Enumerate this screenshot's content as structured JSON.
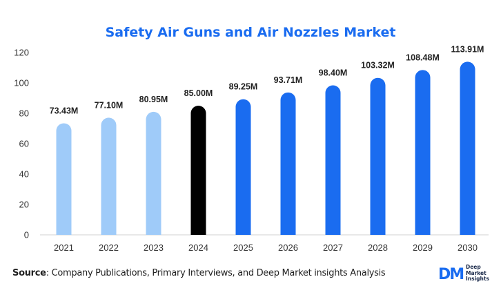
{
  "chart_data": {
    "type": "bar",
    "title": "Safety Air Guns and Air Nozzles Market",
    "categories": [
      "2021",
      "2022",
      "2023",
      "2024",
      "2025",
      "2026",
      "2027",
      "2028",
      "2029",
      "2030"
    ],
    "values": [
      73.43,
      77.1,
      80.95,
      85.0,
      89.25,
      93.71,
      98.4,
      103.32,
      108.48,
      113.91
    ],
    "data_labels": [
      "73.43M",
      "77.10M",
      "80.95M",
      "85.00M",
      "89.25M",
      "93.71M",
      "98.40M",
      "103.32M",
      "108.48M",
      "113.91M"
    ],
    "bar_colors": [
      "#9fcbf9",
      "#9fcbf9",
      "#9fcbf9",
      "#000000",
      "#1a6cf0",
      "#1a6cf0",
      "#1a6cf0",
      "#1a6cf0",
      "#1a6cf0",
      "#1a6cf0"
    ],
    "yticks": [
      0,
      20,
      40,
      60,
      80,
      100,
      120
    ],
    "ylim": [
      0,
      120
    ],
    "xlabel": "",
    "ylabel": "",
    "grid": false,
    "legend": "none"
  },
  "source": {
    "prefix": "Source",
    "text": ": Company Publications, Primary Interviews, and Deep Market insights Analysis"
  },
  "logo": {
    "mark": "DM",
    "line1": "Deep",
    "line2": "Market",
    "line3": "Insights",
    "color": "#1a6cf0"
  }
}
